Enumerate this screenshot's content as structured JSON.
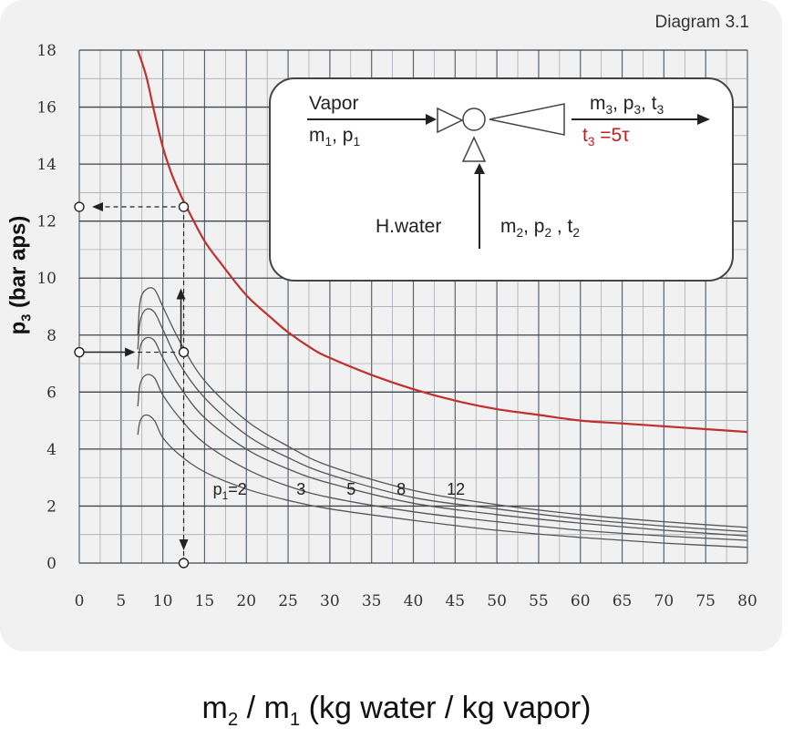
{
  "diagram_tag": "Diagram 3.1",
  "inset": {
    "vapor_label": "Vapor",
    "vapor_m": "m",
    "vapor_m_sub": "1",
    "vapor_sep": ",  p",
    "vapor_p_sub": "1",
    "out_m": "m",
    "out_m_sub": "3",
    "out_sep1": ", p",
    "out_p_sub": "3",
    "out_sep2": ", t",
    "out_t_sub": "3",
    "cond_t": "t",
    "cond_t_sub": "3",
    "cond_rest": " =5τ",
    "water_label": "H.water",
    "water_m": "m",
    "water_m_sub": "2",
    "water_sep1": ", p",
    "water_p_sub": "2",
    "water_sep2": " ,  t",
    "water_t_sub": "2"
  },
  "axis": {
    "ylabel_main": "p",
    "ylabel_sub": "3",
    "ylabel_rest": " (bar aps)",
    "xlabel_m2": "m",
    "xlabel_m2_sub": "2",
    "xlabel_mid": " / m",
    "xlabel_m1_sub": "1",
    "xlabel_rest": "  (kg water / kg vapor)"
  },
  "chart_data": {
    "type": "line",
    "xlim": [
      0,
      80
    ],
    "ylim": [
      0,
      18
    ],
    "xticks": [
      0,
      5,
      10,
      15,
      20,
      25,
      30,
      35,
      40,
      45,
      50,
      55,
      60,
      65,
      70,
      75,
      80
    ],
    "yticks": [
      0,
      2,
      4,
      6,
      8,
      10,
      12,
      14,
      16,
      18
    ],
    "grid": true,
    "colors": {
      "limit": "#c03030",
      "series": "#555555",
      "guide": "#222222"
    },
    "limit_curve": {
      "x": [
        7,
        8,
        9,
        10,
        11,
        12,
        13,
        15,
        17,
        20,
        23,
        25,
        28,
        30,
        35,
        40,
        45,
        50,
        55,
        60,
        65,
        70,
        75,
        80
      ],
      "y": [
        18,
        17.1,
        15.8,
        14.6,
        13.7,
        13.0,
        12.4,
        11.3,
        10.5,
        9.4,
        8.6,
        8.1,
        7.5,
        7.2,
        6.6,
        6.1,
        5.7,
        5.4,
        5.2,
        5.0,
        4.9,
        4.8,
        4.7,
        4.6
      ]
    },
    "series_prefix": "p",
    "series_prefix_sub": "1",
    "series": [
      {
        "name": "2",
        "x": [
          7,
          7.3,
          8,
          9,
          10,
          12,
          15,
          20,
          25,
          30,
          40,
          50,
          60,
          70,
          80
        ],
        "y": [
          4.5,
          5.0,
          5.2,
          5.0,
          4.4,
          3.8,
          3.2,
          2.6,
          2.2,
          1.9,
          1.5,
          1.15,
          0.9,
          0.7,
          0.55
        ]
      },
      {
        "name": "3",
        "x": [
          7,
          7.3,
          8,
          9,
          10,
          12,
          15,
          20,
          25,
          30,
          40,
          50,
          60,
          70,
          80
        ],
        "y": [
          5.5,
          6.3,
          6.6,
          6.5,
          5.9,
          5.1,
          4.2,
          3.3,
          2.7,
          2.3,
          1.8,
          1.45,
          1.15,
          0.95,
          0.8
        ]
      },
      {
        "name": "5",
        "x": [
          7,
          7.3,
          8,
          9,
          10,
          12,
          15,
          20,
          25,
          30,
          40,
          50,
          60,
          70,
          80
        ],
        "y": [
          6.8,
          7.6,
          7.9,
          7.8,
          7.2,
          6.2,
          5.1,
          4.0,
          3.3,
          2.8,
          2.1,
          1.7,
          1.4,
          1.15,
          0.95
        ]
      },
      {
        "name": "8",
        "x": [
          7,
          7.3,
          8,
          9,
          10,
          12,
          15,
          20,
          25,
          30,
          40,
          50,
          60,
          70,
          80
        ],
        "y": [
          7.5,
          8.5,
          8.9,
          8.8,
          8.2,
          7.0,
          5.8,
          4.5,
          3.7,
          3.1,
          2.3,
          1.9,
          1.55,
          1.3,
          1.1
        ]
      },
      {
        "name": "12",
        "x": [
          7,
          7.3,
          8,
          9,
          10,
          12,
          15,
          20,
          25,
          30,
          40,
          50,
          60,
          70,
          80
        ],
        "y": [
          8.0,
          9.2,
          9.6,
          9.6,
          9.0,
          7.8,
          6.4,
          5.0,
          4.1,
          3.4,
          2.55,
          2.05,
          1.7,
          1.45,
          1.25
        ]
      }
    ],
    "series_label_y": 2.4,
    "series_label_x": [
      16,
      26,
      32,
      38,
      44
    ],
    "example": {
      "x": 12.5,
      "y_in": 7.4,
      "y_out": 12.5
    }
  }
}
